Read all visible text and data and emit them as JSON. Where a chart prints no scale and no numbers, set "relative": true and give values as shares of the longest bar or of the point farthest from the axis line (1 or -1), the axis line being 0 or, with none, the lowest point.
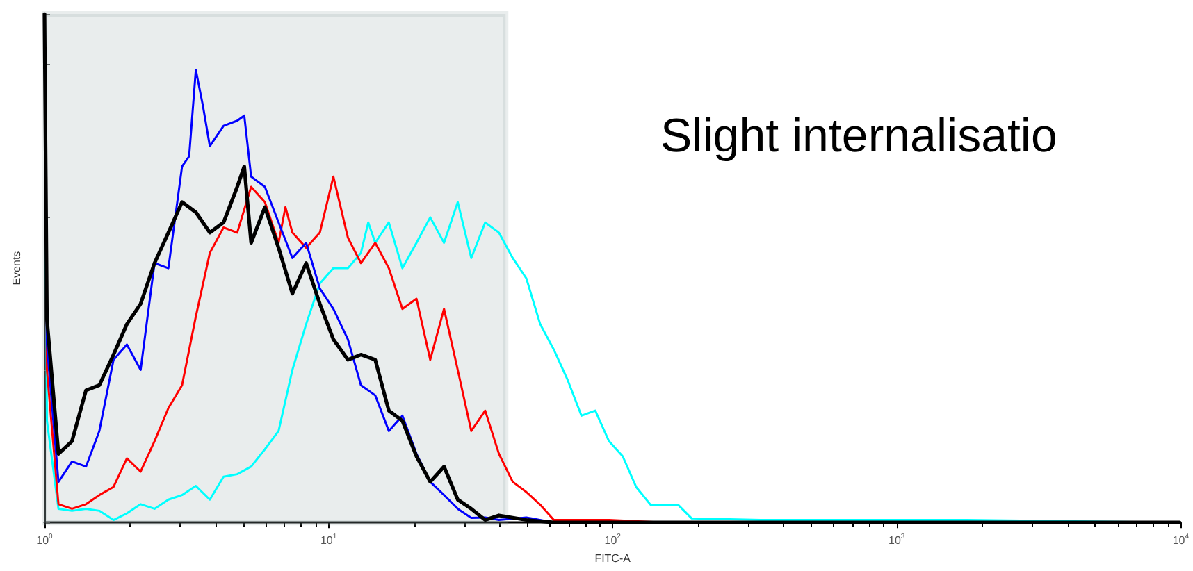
{
  "chart_data": {
    "type": "line",
    "title": "Slight internalisatio",
    "xlabel": "FITC-A",
    "ylabel": "Events",
    "log": "x",
    "relative": true,
    "grid": false,
    "marker": "none",
    "line_style": "solid",
    "xlim": [
      1,
      10000
    ],
    "xticks": [
      {
        "value": 1,
        "label": "10$^{0}$"
      },
      {
        "value": 10,
        "label": "10$^{1}$"
      },
      {
        "value": 100,
        "label": "10$^{2}$"
      },
      {
        "value": 1000,
        "label": "10$^{3}$"
      },
      {
        "value": 10000,
        "label": "10$^{4}$"
      }
    ],
    "bands": [
      {
        "axis": "x",
        "from": 1,
        "to": 42,
        "color": "#8fa3a6"
      }
    ],
    "series": [
      {
        "color": "#00ffff",
        "x": [
          1,
          1.02,
          1.12,
          1.25,
          1.4,
          1.56,
          1.75,
          1.95,
          2.18,
          2.44,
          2.73,
          3.05,
          3.41,
          3.82,
          4.27,
          4.77,
          5.34,
          5.97,
          6.67,
          7.46,
          8.34,
          9.32,
          10.4,
          11.7,
          13.0,
          13.8,
          14.6,
          16.3,
          18.2,
          20.4,
          22.8,
          25.5,
          28.5,
          31.8,
          35.6,
          39.8,
          44.5,
          49.7,
          55.6,
          62.1,
          69.5,
          77.7,
          86.9,
          97.1,
          108.6,
          121,
          136,
          152,
          170,
          190,
          332,
          580,
          1770,
          9900
        ],
        "values": [
          1,
          0.2,
          0.027,
          0.023,
          0.027,
          0.023,
          0.005,
          0.018,
          0.036,
          0.027,
          0.045,
          0.054,
          0.072,
          0.045,
          0.09,
          0.095,
          0.11,
          0.144,
          0.18,
          0.3,
          0.39,
          0.47,
          0.5,
          0.5,
          0.53,
          0.59,
          0.55,
          0.59,
          0.5,
          0.55,
          0.6,
          0.55,
          0.63,
          0.52,
          0.59,
          0.57,
          0.52,
          0.48,
          0.39,
          0.34,
          0.28,
          0.21,
          0.22,
          0.16,
          0.13,
          0.07,
          0.035,
          0.035,
          0.035,
          0.008,
          0.005,
          0.005,
          0.005,
          0
        ]
      },
      {
        "color": "#ff0000",
        "x": [
          1,
          1.02,
          1.12,
          1.25,
          1.4,
          1.56,
          1.75,
          1.95,
          2.18,
          2.44,
          2.73,
          3.05,
          3.41,
          3.82,
          4.27,
          4.77,
          5.34,
          5.97,
          6.67,
          7.05,
          7.46,
          8.34,
          9.32,
          10.4,
          11.7,
          13.0,
          14.6,
          16.3,
          18.2,
          20.4,
          22.8,
          25.5,
          28.5,
          31.8,
          35.6,
          39.8,
          44.5,
          49.7,
          55.6,
          62.1,
          77.7,
          97.1,
          152,
          9900
        ],
        "values": [
          1,
          0.3,
          0.036,
          0.027,
          0.036,
          0.054,
          0.07,
          0.126,
          0.1,
          0.16,
          0.225,
          0.27,
          0.405,
          0.53,
          0.58,
          0.57,
          0.66,
          0.63,
          0.55,
          0.62,
          0.57,
          0.54,
          0.57,
          0.68,
          0.56,
          0.51,
          0.55,
          0.5,
          0.42,
          0.44,
          0.32,
          0.42,
          0.3,
          0.18,
          0.22,
          0.135,
          0.08,
          0.06,
          0.035,
          0.005,
          0.005,
          0.005,
          0,
          0
        ]
      },
      {
        "color": "#0000ff",
        "x": [
          1,
          1.02,
          1.12,
          1.25,
          1.4,
          1.56,
          1.75,
          1.95,
          2.18,
          2.44,
          2.73,
          3.05,
          3.23,
          3.41,
          3.61,
          3.82,
          4.27,
          4.77,
          5.05,
          5.34,
          5.97,
          6.67,
          7.46,
          8.34,
          9.32,
          10.4,
          11.7,
          13.0,
          14.6,
          16.3,
          18.2,
          20.4,
          22.8,
          25.5,
          28.5,
          31.8,
          35.6,
          39.8,
          49.7,
          62.1,
          9900
        ],
        "values": [
          1,
          0.35,
          0.08,
          0.12,
          0.11,
          0.18,
          0.32,
          0.35,
          0.3,
          0.51,
          0.5,
          0.7,
          0.72,
          0.89,
          0.82,
          0.74,
          0.78,
          0.79,
          0.8,
          0.68,
          0.66,
          0.59,
          0.52,
          0.55,
          0.46,
          0.42,
          0.36,
          0.27,
          0.25,
          0.18,
          0.21,
          0.135,
          0.08,
          0.054,
          0.027,
          0.009,
          0.01,
          0.005,
          0.01,
          0,
          0
        ]
      },
      {
        "color": "#000000",
        "x": [
          1,
          1.02,
          1.12,
          1.25,
          1.4,
          1.56,
          1.75,
          1.95,
          2.18,
          2.44,
          2.73,
          3.05,
          3.41,
          3.82,
          4.27,
          4.77,
          5.05,
          5.34,
          5.97,
          6.67,
          7.46,
          8.34,
          9.32,
          10.4,
          11.7,
          13.0,
          14.6,
          16.3,
          18.2,
          20.4,
          22.8,
          25.5,
          28.5,
          31.8,
          35.6,
          39.8,
          49.7,
          62.1,
          9900
        ],
        "values": [
          1,
          0.4,
          0.135,
          0.16,
          0.26,
          0.27,
          0.33,
          0.39,
          0.43,
          0.51,
          0.57,
          0.63,
          0.61,
          0.57,
          0.59,
          0.66,
          0.7,
          0.55,
          0.62,
          0.54,
          0.45,
          0.51,
          0.43,
          0.36,
          0.32,
          0.33,
          0.32,
          0.22,
          0.2,
          0.13,
          0.08,
          0.11,
          0.045,
          0.027,
          0.005,
          0.014,
          0.005,
          0,
          0
        ]
      }
    ]
  }
}
